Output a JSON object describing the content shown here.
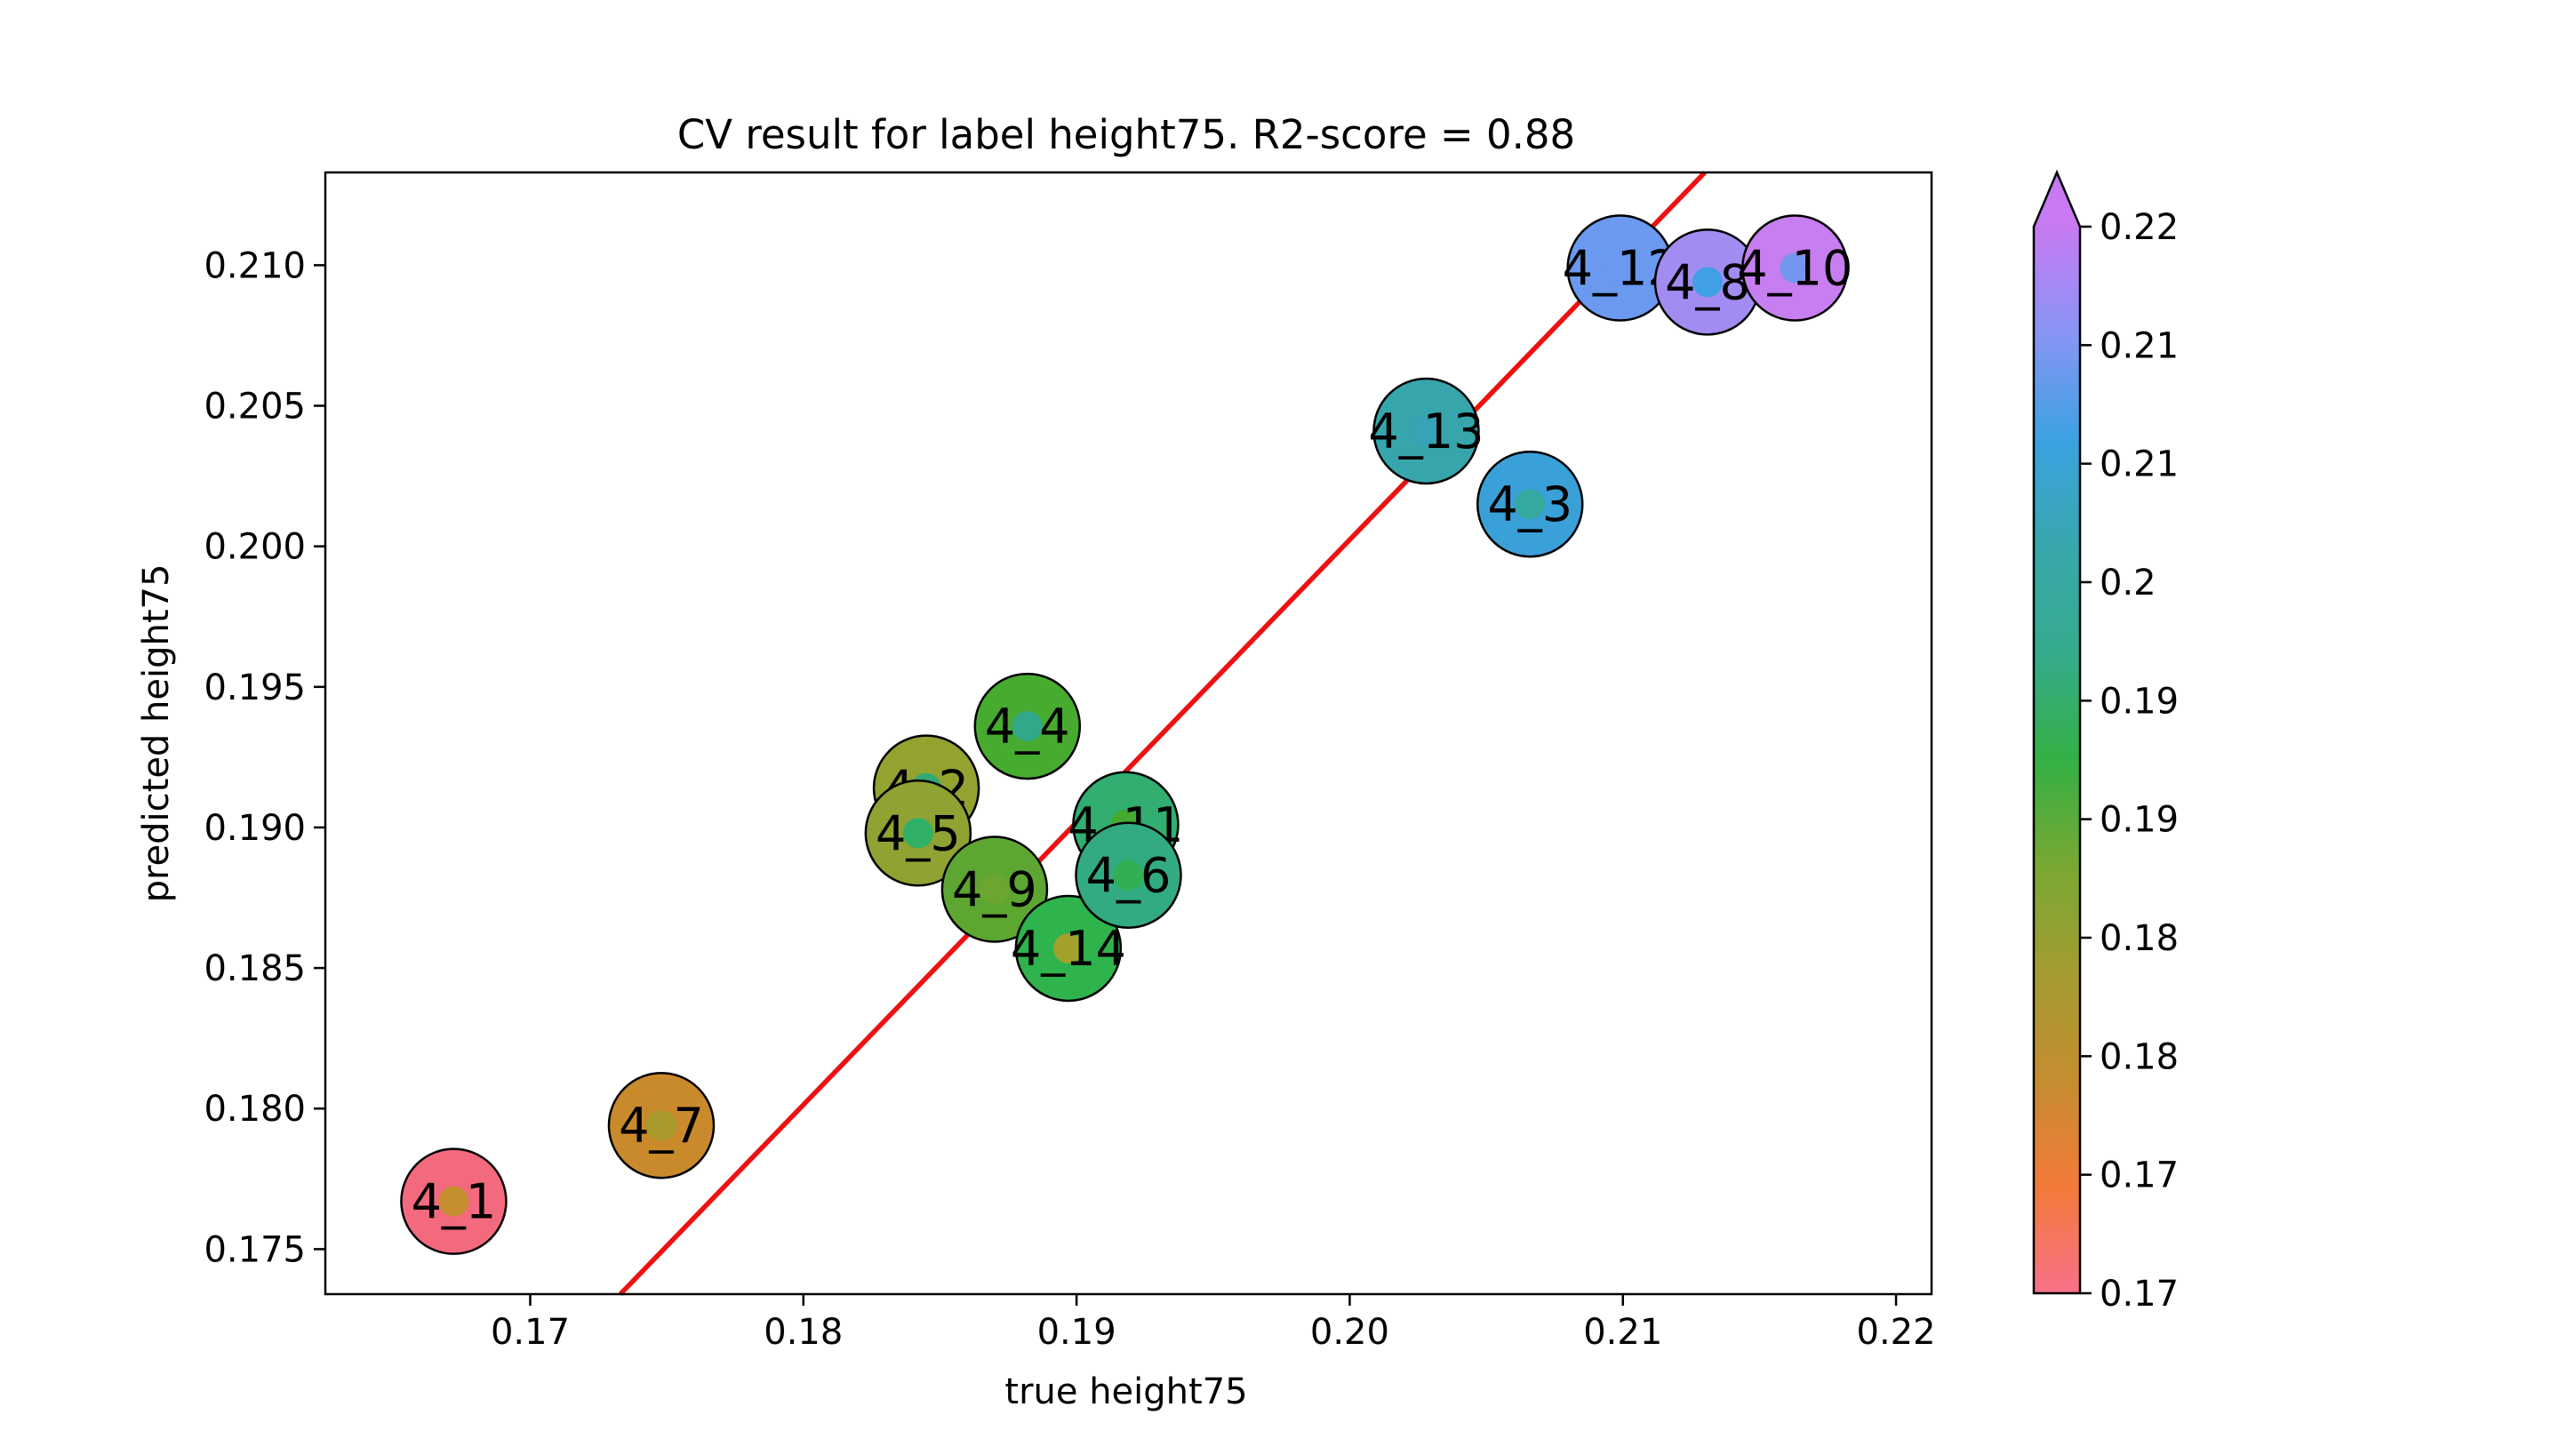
{
  "chart_data": {
    "type": "scatter",
    "title": "CV result for label height75. R2-score = 0.88",
    "xlabel": "true height75",
    "ylabel": "predicted height75",
    "xlim": [
      0.1625,
      0.2213
    ],
    "ylim": [
      0.1734,
      0.2133
    ],
    "x_ticks": [
      0.17,
      0.18,
      0.19,
      0.2,
      0.21,
      0.22
    ],
    "x_tick_labels": [
      "0.17",
      "0.18",
      "0.19",
      "0.20",
      "0.21",
      "0.22"
    ],
    "y_ticks": [
      0.175,
      0.18,
      0.185,
      0.19,
      0.195,
      0.2,
      0.205,
      0.21
    ],
    "y_tick_labels": [
      "0.175",
      "0.180",
      "0.185",
      "0.190",
      "0.195",
      "0.200",
      "0.205",
      "0.210"
    ],
    "points": [
      {
        "label": "4_1",
        "x": 0.1672,
        "y": 0.1767,
        "color": "#f36a7f",
        "inner_color": "#c58e2f"
      },
      {
        "label": "4_7",
        "x": 0.1748,
        "y": 0.1794,
        "color": "#c98a2c",
        "inner_color": "#a99a2c"
      },
      {
        "label": "4_2",
        "x": 0.1845,
        "y": 0.1914,
        "color": "#94a230",
        "inner_color": "#33a974"
      },
      {
        "label": "4_5",
        "x": 0.1842,
        "y": 0.1898,
        "color": "#8ea332",
        "inner_color": "#2fb066"
      },
      {
        "label": "4_9",
        "x": 0.187,
        "y": 0.1878,
        "color": "#5ea632",
        "inner_color": "#6aa630"
      },
      {
        "label": "4_4",
        "x": 0.1882,
        "y": 0.1936,
        "color": "#47ab30",
        "inner_color": "#32a88a"
      },
      {
        "label": "4_14",
        "x": 0.1897,
        "y": 0.1857,
        "color": "#2fb34c",
        "inner_color": "#a2a12c"
      },
      {
        "label": "4_11",
        "x": 0.1918,
        "y": 0.1901,
        "color": "#31ae70",
        "inner_color": "#45aa30"
      },
      {
        "label": "4_6",
        "x": 0.1919,
        "y": 0.1883,
        "color": "#33ab82",
        "inner_color": "#30b052"
      },
      {
        "label": "4_13",
        "x": 0.2028,
        "y": 0.2041,
        "color": "#36a6ac",
        "inner_color": "#36a3b6"
      },
      {
        "label": "4_3",
        "x": 0.2066,
        "y": 0.2015,
        "color": "#3aa0d8",
        "inner_color": "#34a99e"
      },
      {
        "label": "4_12",
        "x": 0.2099,
        "y": 0.2099,
        "color": "#6a99ef",
        "inner_color": "#6b99ef"
      },
      {
        "label": "4_8",
        "x": 0.2131,
        "y": 0.2094,
        "color": "#a28cf2",
        "inner_color": "#3fa0e6"
      },
      {
        "label": "4_10",
        "x": 0.2163,
        "y": 0.2099,
        "color": "#c67ef0",
        "inner_color": "#7496ee"
      }
    ],
    "fit_line": {
      "color": "#ee1111",
      "x1": 0.1733,
      "y1": 0.1734,
      "x2": 0.213,
      "y2": 0.2133
    },
    "colorbar": {
      "tick_labels": [
        "0.22",
        "0.21",
        "0.21",
        "0.2",
        "0.19",
        "0.19",
        "0.18",
        "0.18",
        "0.17",
        "0.17"
      ],
      "gradient": [
        "#f77189",
        "#f37a39",
        "#c58d30",
        "#a49c31",
        "#79a832",
        "#33b044",
        "#35ab8c",
        "#38a7ac",
        "#3ba2e2",
        "#8895f5",
        "#c77af2"
      ],
      "extend_color": "#c77af2"
    }
  }
}
